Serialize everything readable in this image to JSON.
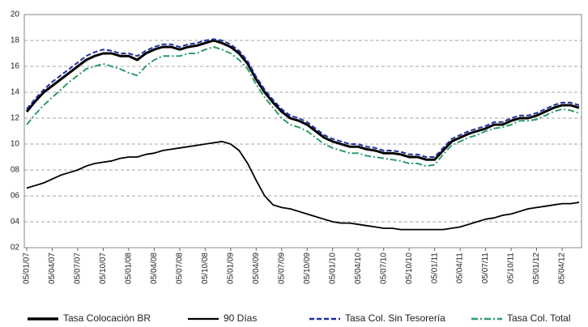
{
  "chart_data": {
    "type": "line",
    "categories": [
      "05/01/07",
      null,
      null,
      "05/04/07",
      null,
      null,
      "05/07/07",
      null,
      null,
      "05/10/07",
      null,
      null,
      "05/01/08",
      null,
      null,
      "05/04/08",
      null,
      null,
      "05/07/08",
      null,
      null,
      "05/10/08",
      null,
      null,
      "05/01/09",
      null,
      null,
      "05/04/09",
      null,
      null,
      "05/07/09",
      null,
      null,
      "05/10/09",
      null,
      null,
      "05/01/10",
      null,
      null,
      "05/04/10",
      null,
      null,
      "05/07/10",
      null,
      null,
      "05/10/10",
      null,
      null,
      "05/01/11",
      null,
      null,
      "05/04/11",
      null,
      null,
      "05/07/11",
      null,
      null,
      "05/10/11",
      null,
      null,
      "05/01/12",
      null,
      null,
      "05/04/12",
      null,
      null
    ],
    "series": [
      {
        "name": "Tasa Colocación BR",
        "color": "#000000",
        "style": "solid",
        "width": 3,
        "values": [
          12.5,
          13.3,
          14.0,
          14.5,
          15.0,
          15.5,
          16.0,
          16.5,
          16.8,
          17.0,
          17.0,
          16.8,
          16.8,
          16.5,
          17.0,
          17.3,
          17.5,
          17.5,
          17.3,
          17.5,
          17.6,
          17.8,
          18.0,
          17.8,
          17.5,
          17.0,
          16.2,
          15.0,
          14.0,
          13.2,
          12.5,
          12.0,
          11.8,
          11.5,
          11.0,
          10.5,
          10.2,
          10.0,
          9.8,
          9.8,
          9.6,
          9.5,
          9.3,
          9.3,
          9.2,
          9.0,
          9.0,
          8.8,
          8.8,
          9.5,
          10.2,
          10.5,
          10.8,
          11.0,
          11.2,
          11.5,
          11.5,
          11.8,
          12.0,
          12.0,
          12.2,
          12.5,
          12.8,
          13.0,
          13.0,
          12.8
        ]
      },
      {
        "name": "90 Días",
        "color": "#000000",
        "style": "solid",
        "width": 1.8,
        "values": [
          6.6,
          6.8,
          7.0,
          7.3,
          7.6,
          7.8,
          8.0,
          8.3,
          8.5,
          8.6,
          8.7,
          8.9,
          9.0,
          9.0,
          9.2,
          9.3,
          9.5,
          9.6,
          9.7,
          9.8,
          9.9,
          10.0,
          10.1,
          10.2,
          10.0,
          9.5,
          8.5,
          7.2,
          6.0,
          5.3,
          5.1,
          5.0,
          4.8,
          4.6,
          4.4,
          4.2,
          4.0,
          3.9,
          3.9,
          3.8,
          3.7,
          3.6,
          3.5,
          3.5,
          3.4,
          3.4,
          3.4,
          3.4,
          3.4,
          3.4,
          3.5,
          3.6,
          3.8,
          4.0,
          4.2,
          4.3,
          4.5,
          4.6,
          4.8,
          5.0,
          5.1,
          5.2,
          5.3,
          5.4,
          5.4,
          5.5
        ]
      },
      {
        "name": "Tasa Col. Sin Tesorería",
        "color": "#1f2fa0",
        "style": "dashed",
        "width": 2,
        "values": [
          12.7,
          13.5,
          14.2,
          14.8,
          15.3,
          15.8,
          16.3,
          16.8,
          17.1,
          17.3,
          17.2,
          17.0,
          17.0,
          16.8,
          17.2,
          17.5,
          17.7,
          17.7,
          17.5,
          17.7,
          17.8,
          18.0,
          18.1,
          18.0,
          17.7,
          17.2,
          16.4,
          15.2,
          14.2,
          13.4,
          12.7,
          12.2,
          12.0,
          11.7,
          11.2,
          10.7,
          10.4,
          10.2,
          10.0,
          10.0,
          9.8,
          9.7,
          9.5,
          9.5,
          9.4,
          9.2,
          9.2,
          9.0,
          9.0,
          9.7,
          10.4,
          10.7,
          11.0,
          11.2,
          11.4,
          11.7,
          11.7,
          12.0,
          12.2,
          12.2,
          12.4,
          12.7,
          13.0,
          13.2,
          13.2,
          13.0
        ]
      },
      {
        "name": "Tasa Col. Total",
        "color": "#2e9a6a",
        "style": "dashdot",
        "width": 2,
        "values": [
          11.5,
          12.3,
          13.0,
          13.6,
          14.2,
          14.8,
          15.3,
          15.8,
          16.0,
          16.2,
          16.0,
          15.8,
          15.5,
          15.3,
          16.0,
          16.5,
          16.8,
          16.8,
          16.8,
          17.0,
          17.0,
          17.3,
          17.5,
          17.3,
          17.0,
          16.5,
          15.8,
          14.6,
          13.6,
          12.8,
          12.0,
          11.5,
          11.3,
          11.0,
          10.5,
          10.0,
          9.7,
          9.5,
          9.3,
          9.3,
          9.1,
          9.0,
          8.9,
          8.8,
          8.7,
          8.5,
          8.5,
          8.3,
          8.4,
          9.2,
          9.9,
          10.2,
          10.5,
          10.7,
          11.0,
          11.2,
          11.3,
          11.5,
          11.8,
          11.8,
          11.9,
          12.2,
          12.5,
          12.7,
          12.6,
          12.4
        ]
      }
    ],
    "ylim": [
      2,
      20
    ],
    "yticks": [
      {
        "value": 2,
        "label": "02"
      },
      {
        "value": 4,
        "label": "04"
      },
      {
        "value": 6,
        "label": "06"
      },
      {
        "value": 8,
        "label": "08"
      },
      10,
      12,
      14,
      16,
      18,
      20
    ],
    "grid": true
  }
}
